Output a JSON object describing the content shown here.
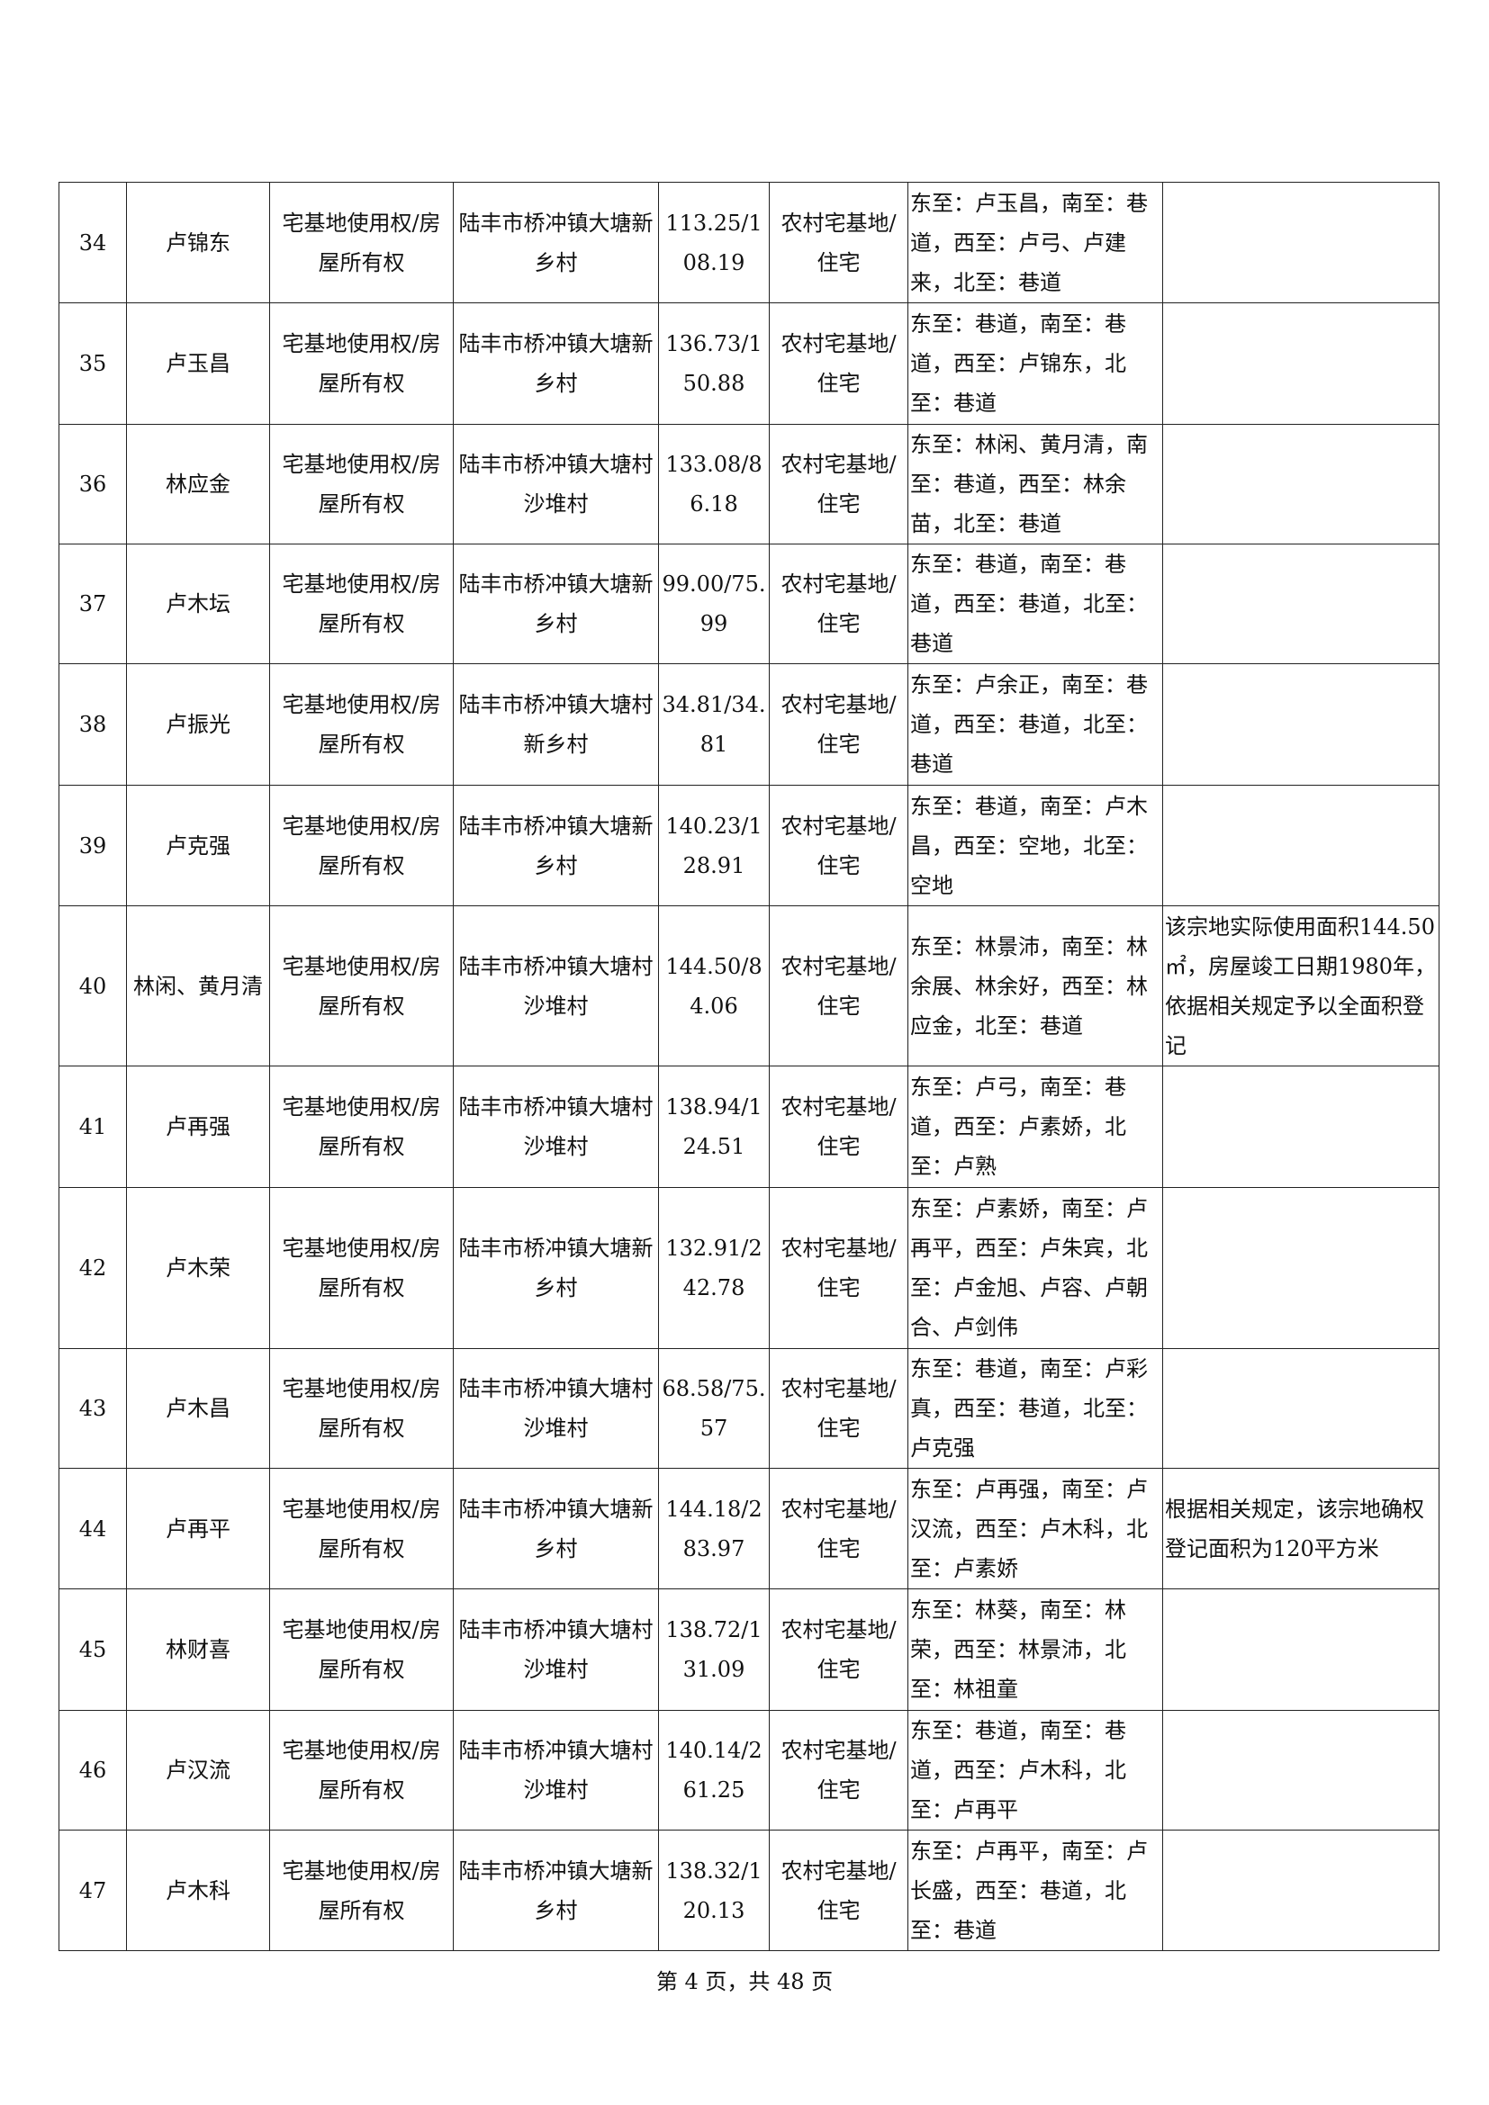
{
  "rows": [
    {
      "no": "34",
      "name": "卢锦东",
      "right": "宅基地使用权/房屋所有权",
      "loc": "陆丰市桥冲镇大塘新乡村",
      "area": "113.25/108.19",
      "use": "农村宅基地/住宅",
      "bound": "东至：卢玉昌，南至：巷道，西至：卢弓、卢建来，北至：巷道",
      "note": ""
    },
    {
      "no": "35",
      "name": "卢玉昌",
      "right": "宅基地使用权/房屋所有权",
      "loc": "陆丰市桥冲镇大塘新乡村",
      "area": "136.73/150.88",
      "use": "农村宅基地/住宅",
      "bound": "东至：巷道，南至：巷道，西至：卢锦东，北至：巷道",
      "note": ""
    },
    {
      "no": "36",
      "name": "林应金",
      "right": "宅基地使用权/房屋所有权",
      "loc": "陆丰市桥冲镇大塘村沙堆村",
      "area": "133.08/86.18",
      "use": "农村宅基地/住宅",
      "bound": "东至：林闲、黄月清，南至：巷道，西至：林余苗，北至：巷道",
      "note": ""
    },
    {
      "no": "37",
      "name": "卢木坛",
      "right": "宅基地使用权/房屋所有权",
      "loc": "陆丰市桥冲镇大塘新乡村",
      "area": "99.00/75.99",
      "use": "农村宅基地/住宅",
      "bound": "东至：巷道，南至：巷道，西至：巷道，北至：巷道",
      "note": ""
    },
    {
      "no": "38",
      "name": "卢振光",
      "right": "宅基地使用权/房屋所有权",
      "loc": "陆丰市桥冲镇大塘村新乡村",
      "area": "34.81/34.81",
      "use": "农村宅基地/住宅",
      "bound": "东至：卢余正，南至：巷道，西至：巷道，北至：巷道",
      "note": ""
    },
    {
      "no": "39",
      "name": "卢克强",
      "right": "宅基地使用权/房屋所有权",
      "loc": "陆丰市桥冲镇大塘新乡村",
      "area": "140.23/128.91",
      "use": "农村宅基地/住宅",
      "bound": "东至：巷道，南至：卢木昌，西至：空地，北至：空地",
      "note": ""
    },
    {
      "no": "40",
      "name": "林闲、黄月清",
      "right": "宅基地使用权/房屋所有权",
      "loc": "陆丰市桥冲镇大塘村沙堆村",
      "area": "144.50/84.06",
      "use": "农村宅基地/住宅",
      "bound": "东至：林景沛，南至：林余展、林余好，西至：林应金，北至：巷道",
      "note": "该宗地实际使用面积144.50㎡，房屋竣工日期1980年，依据相关规定予以全面积登记"
    },
    {
      "no": "41",
      "name": "卢再强",
      "right": "宅基地使用权/房屋所有权",
      "loc": "陆丰市桥冲镇大塘村沙堆村",
      "area": "138.94/124.51",
      "use": "农村宅基地/住宅",
      "bound": "东至：卢弓，南至：巷道，西至：卢素娇，北至：卢熟",
      "note": ""
    },
    {
      "no": "42",
      "name": "卢木荣",
      "right": "宅基地使用权/房屋所有权",
      "loc": "陆丰市桥冲镇大塘新乡村",
      "area": "132.91/242.78",
      "use": "农村宅基地/住宅",
      "bound": "东至：卢素娇，南至：卢再平，西至：卢朱宾，北至：卢金旭、卢容、卢朝合、卢剑伟",
      "note": ""
    },
    {
      "no": "43",
      "name": "卢木昌",
      "right": "宅基地使用权/房屋所有权",
      "loc": "陆丰市桥冲镇大塘村沙堆村",
      "area": "68.58/75.57",
      "use": "农村宅基地/住宅",
      "bound": "东至：巷道，南至：卢彩真，西至：巷道，北至：卢克强",
      "note": ""
    },
    {
      "no": "44",
      "name": "卢再平",
      "right": "宅基地使用权/房屋所有权",
      "loc": "陆丰市桥冲镇大塘新乡村",
      "area": "144.18/283.97",
      "use": "农村宅基地/住宅",
      "bound": "东至：卢再强，南至：卢汉流，西至：卢木科，北至：卢素娇",
      "note": "根据相关规定，该宗地确权登记面积为120平方米"
    },
    {
      "no": "45",
      "name": "林财喜",
      "right": "宅基地使用权/房屋所有权",
      "loc": "陆丰市桥冲镇大塘村沙堆村",
      "area": "138.72/131.09",
      "use": "农村宅基地/住宅",
      "bound": "东至：林葵，南至：林荣，西至：林景沛，北至：林祖童",
      "note": ""
    },
    {
      "no": "46",
      "name": "卢汉流",
      "right": "宅基地使用权/房屋所有权",
      "loc": "陆丰市桥冲镇大塘村沙堆村",
      "area": "140.14/261.25",
      "use": "农村宅基地/住宅",
      "bound": "东至：巷道，南至：巷道，西至：卢木科，北至：卢再平",
      "note": ""
    },
    {
      "no": "47",
      "name": "卢木科",
      "right": "宅基地使用权/房屋所有权",
      "loc": "陆丰市桥冲镇大塘新乡村",
      "area": "138.32/120.13",
      "use": "农村宅基地/住宅",
      "bound": "东至：卢再平，南至：卢长盛，西至：巷道，北至：巷道",
      "note": ""
    }
  ],
  "footer": "第 4 页，共 48 页"
}
